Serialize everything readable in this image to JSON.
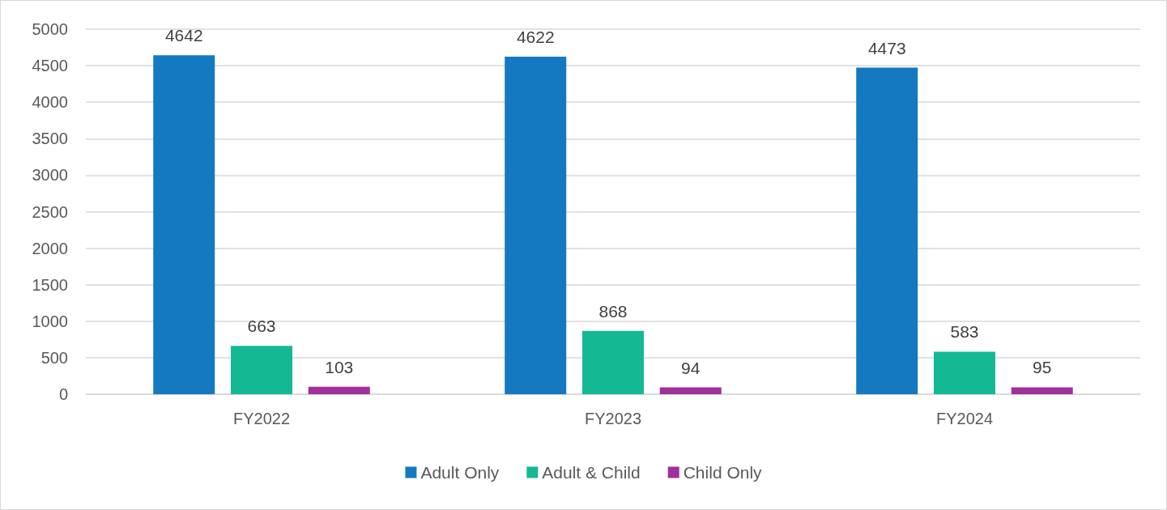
{
  "chart_data": {
    "type": "bar",
    "categories": [
      "FY2022",
      "FY2023",
      "FY2024"
    ],
    "series": [
      {
        "name": "Adult Only",
        "color": "#1479c1",
        "values": [
          4642,
          4622,
          4473
        ]
      },
      {
        "name": "Adult & Child",
        "color": "#14b994",
        "values": [
          663,
          868,
          583
        ]
      },
      {
        "name": "Child Only",
        "color": "#a0309a",
        "values": [
          103,
          94,
          95
        ]
      }
    ],
    "ylim": [
      0,
      5000
    ],
    "yticks": [
      0,
      500,
      1000,
      1500,
      2000,
      2500,
      3000,
      3500,
      4000,
      4500,
      5000
    ],
    "grid": "y",
    "legend": "bottom",
    "data_labels": true
  }
}
